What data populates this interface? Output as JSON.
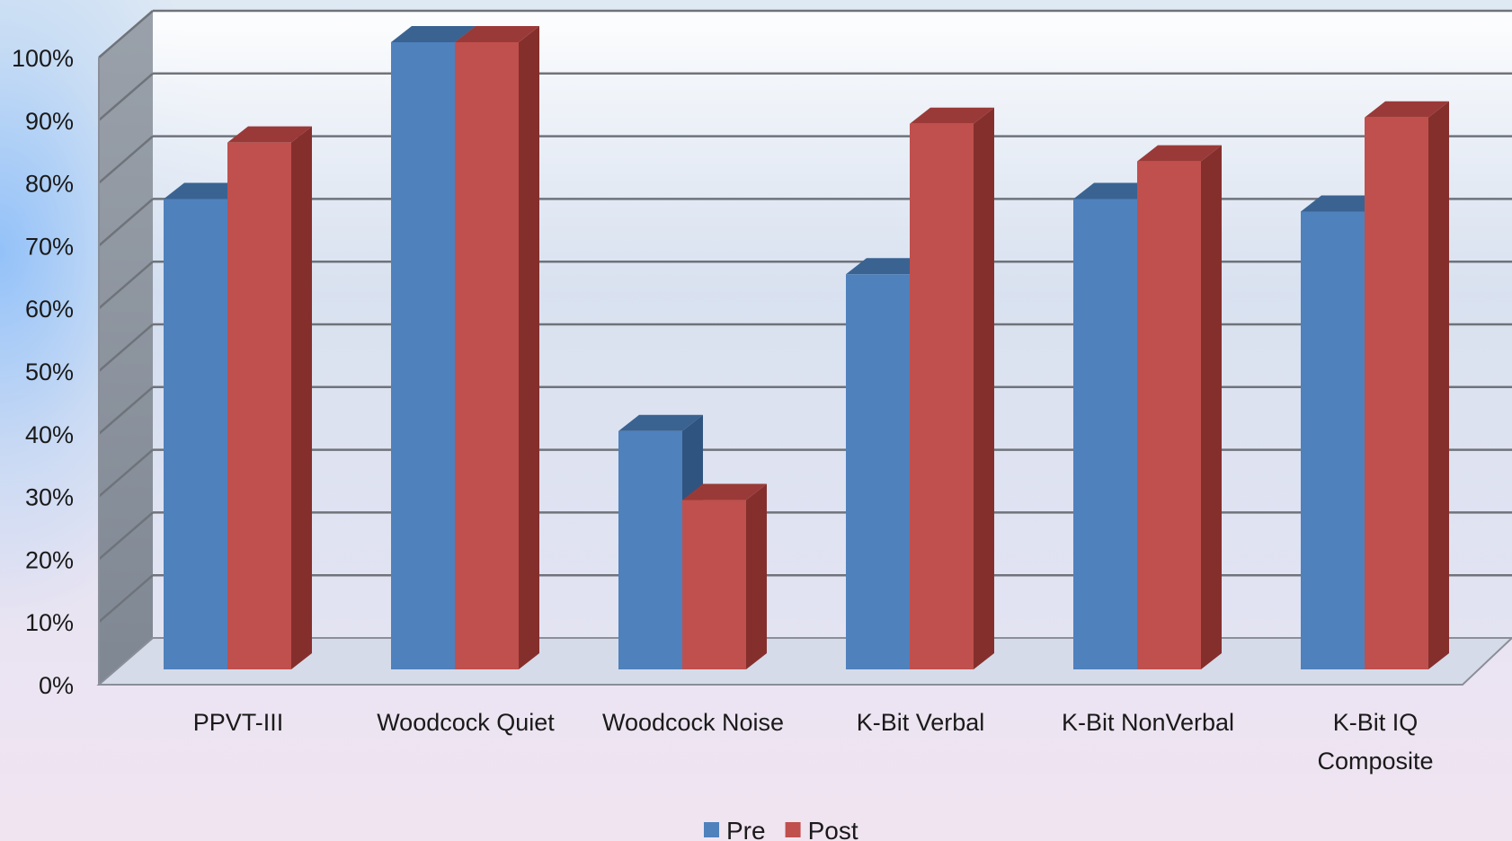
{
  "chart_data": {
    "type": "bar",
    "categories": [
      [
        "PPVT-III"
      ],
      [
        "Woodcock Quiet"
      ],
      [
        "Woodcock Noise"
      ],
      [
        "K-Bit Verbal"
      ],
      [
        "K-Bit NonVerbal"
      ],
      [
        "K-Bit IQ",
        "Composite"
      ]
    ],
    "series": [
      {
        "name": "Pre",
        "values": [
          75,
          100,
          38,
          63,
          75,
          73
        ]
      },
      {
        "name": "Post",
        "values": [
          84,
          100,
          27,
          87,
          81,
          88
        ]
      }
    ],
    "y_ticks": [
      "0%",
      "10%",
      "20%",
      "30%",
      "40%",
      "50%",
      "60%",
      "70%",
      "80%",
      "90%",
      "100%"
    ],
    "ylim": [
      0,
      100
    ],
    "grid": true,
    "legend_position": "bottom",
    "style": "3d-clustered-column"
  },
  "colors": {
    "Pre": {
      "front": "#4f81bd",
      "top": "#3a6392",
      "side": "#2f5480"
    },
    "Post": {
      "front": "#c0504d",
      "top": "#9a3a38",
      "side": "#852f2d"
    },
    "wall": "#9097a1",
    "grid": "#7a7a7a"
  }
}
